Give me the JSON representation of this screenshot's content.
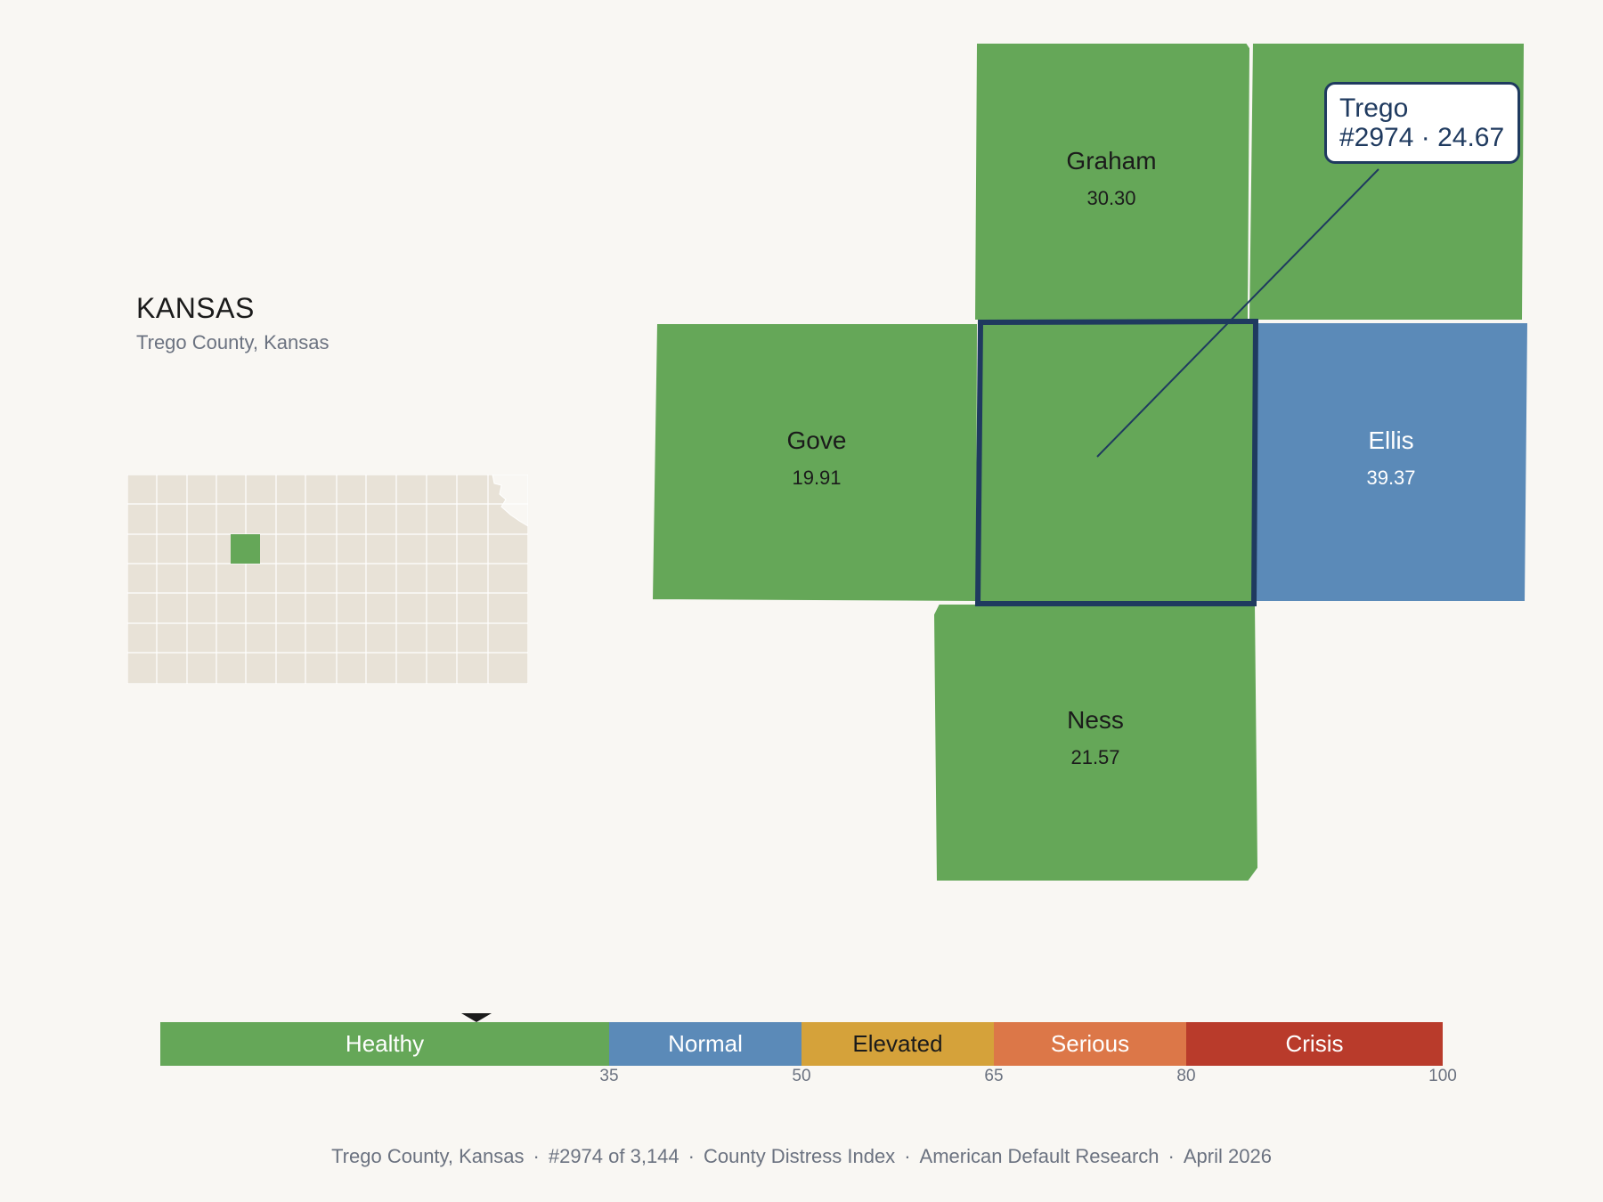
{
  "header": {
    "state": "KANSAS",
    "subtitle": "Trego County, Kansas"
  },
  "counties": {
    "graham": {
      "name": "Graham",
      "value": "30.30",
      "category": "Healthy"
    },
    "rooks": {
      "name": "",
      "value": "",
      "category": "Healthy"
    },
    "gove": {
      "name": "Gove",
      "value": "19.91",
      "category": "Healthy"
    },
    "trego": {
      "name": "Trego",
      "value": "24.67",
      "category": "Healthy",
      "rank": "#2974"
    },
    "ellis": {
      "name": "Ellis",
      "value": "39.37",
      "category": "Normal"
    },
    "ness": {
      "name": "Ness",
      "value": "21.57",
      "category": "Healthy"
    }
  },
  "tooltip": {
    "line1": "Trego",
    "line2": "#2974 · 24.67"
  },
  "scale": {
    "segments": [
      {
        "label": "Healthy",
        "from": 0,
        "to": 35,
        "color": "#65a758",
        "text_color": "#ffffff"
      },
      {
        "label": "Normal",
        "from": 35,
        "to": 50,
        "color": "#5b8ab8",
        "text_color": "#ffffff"
      },
      {
        "label": "Elevated",
        "from": 50,
        "to": 65,
        "color": "#d5a23a",
        "text_color": "#1b1b1b"
      },
      {
        "label": "Serious",
        "from": 65,
        "to": 80,
        "color": "#dc7748",
        "text_color": "#ffffff"
      },
      {
        "label": "Crisis",
        "from": 80,
        "to": 100,
        "color": "#b93b2b",
        "text_color": "#ffffff"
      }
    ],
    "ticks": [
      "35",
      "50",
      "65",
      "80",
      "100"
    ],
    "marker_value": 24.67
  },
  "footer": {
    "county": "Trego County, Kansas",
    "rank": "#2974 of 3,144",
    "index": "County Distress Index",
    "org": "American Default Research",
    "date": "April 2026"
  },
  "colors": {
    "healthy": "#65a758",
    "normal": "#5b8ab8",
    "locator_fill": "#e8e2d7",
    "highlight_border": "#1f3a5f",
    "background": "#f9f7f3"
  }
}
